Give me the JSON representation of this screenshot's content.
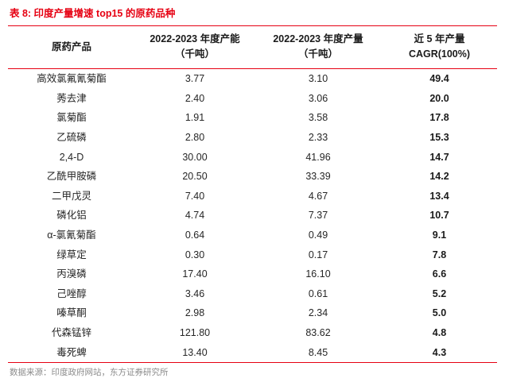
{
  "accent_color": "#e60012",
  "title": "表 8: 印度产量增速 top15 的原药品种",
  "table": {
    "headers": [
      {
        "line1": "原药产品",
        "line2": ""
      },
      {
        "line1": "2022-2023 年度产能",
        "line2": "（千吨）"
      },
      {
        "line1": "2022-2023 年度产量",
        "line2": "（千吨）"
      },
      {
        "line1": "近 5 年产量",
        "line2": "CAGR(100%)"
      }
    ],
    "rows": [
      {
        "product": "高效氯氟氰菊酯",
        "capacity": "3.77",
        "output": "3.10",
        "cagr": "49.4"
      },
      {
        "product": "莠去津",
        "capacity": "2.40",
        "output": "3.06",
        "cagr": "20.0"
      },
      {
        "product": "氯菊酯",
        "capacity": "1.91",
        "output": "3.58",
        "cagr": "17.8"
      },
      {
        "product": "乙硫磷",
        "capacity": "2.80",
        "output": "2.33",
        "cagr": "15.3"
      },
      {
        "product": "2,4-D",
        "capacity": "30.00",
        "output": "41.96",
        "cagr": "14.7"
      },
      {
        "product": "乙酰甲胺磷",
        "capacity": "20.50",
        "output": "33.39",
        "cagr": "14.2"
      },
      {
        "product": "二甲戊灵",
        "capacity": "7.40",
        "output": "4.67",
        "cagr": "13.4"
      },
      {
        "product": "磷化铝",
        "capacity": "4.74",
        "output": "7.37",
        "cagr": "10.7"
      },
      {
        "product": "α-氯氰菊酯",
        "capacity": "0.64",
        "output": "0.49",
        "cagr": "9.1"
      },
      {
        "product": "绿草定",
        "capacity": "0.30",
        "output": "0.17",
        "cagr": "7.8"
      },
      {
        "product": "丙溴磷",
        "capacity": "17.40",
        "output": "16.10",
        "cagr": "6.6"
      },
      {
        "product": "己唑醇",
        "capacity": "3.46",
        "output": "0.61",
        "cagr": "5.2"
      },
      {
        "product": "嗪草酮",
        "capacity": "2.98",
        "output": "2.34",
        "cagr": "5.0"
      },
      {
        "product": "代森锰锌",
        "capacity": "121.80",
        "output": "83.62",
        "cagr": "4.8"
      },
      {
        "product": "毒死蜱",
        "capacity": "13.40",
        "output": "8.45",
        "cagr": "4.3"
      }
    ]
  },
  "footer": "数据来源：印度政府网站，东方证券研究所"
}
